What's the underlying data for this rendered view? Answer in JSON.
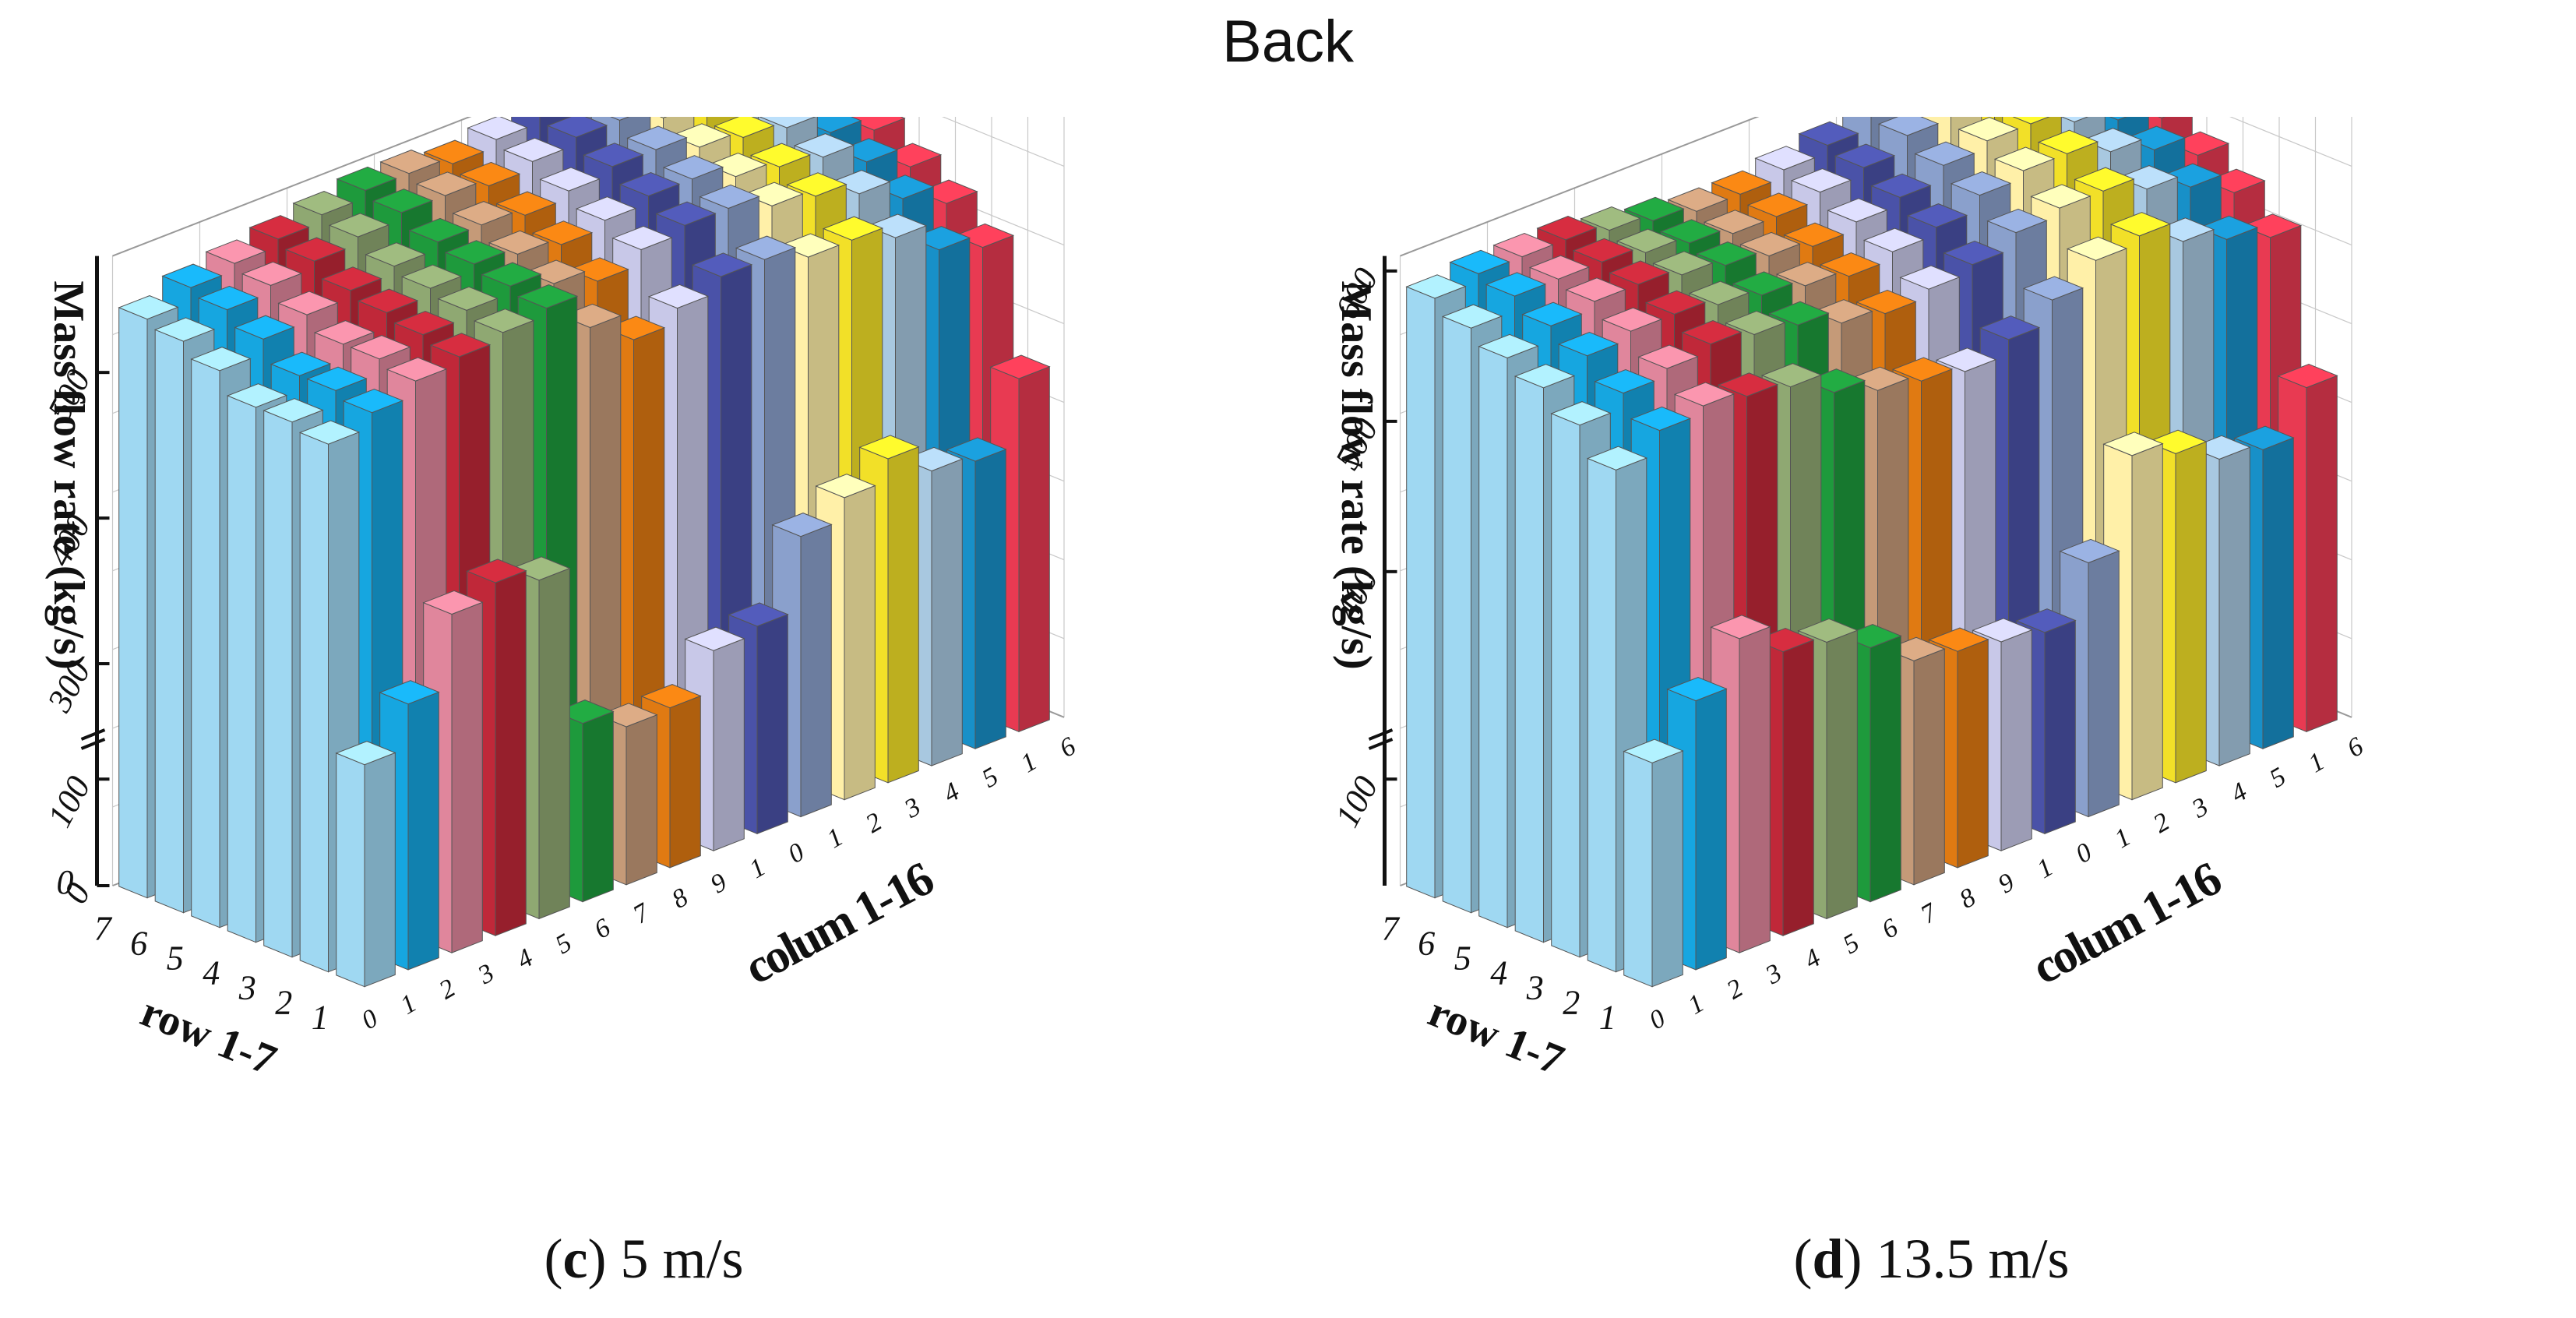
{
  "figure_title": "Back",
  "chart_data": [
    {
      "type": "bar3d",
      "panel_label": "c",
      "caption": "5 m/s",
      "title": "(c) 5 m/s",
      "ylabel": "Mass flow rate (kg/s)",
      "xlabel": "row 1-7",
      "zlabel": "colum 1-16",
      "rows": [
        1,
        2,
        3,
        4,
        5,
        6,
        7
      ],
      "columns": [
        1,
        2,
        3,
        4,
        5,
        6,
        7,
        8,
        9,
        10,
        11,
        12,
        13,
        14,
        15,
        16
      ],
      "column_tick_labels": [
        "0",
        "1",
        "2",
        "3",
        "4",
        "5",
        "6",
        "7",
        "8",
        "9",
        "1",
        "0",
        "1",
        "2",
        "3",
        "4",
        "5",
        "1",
        "6"
      ],
      "row_tick_labels": [
        "1",
        "2",
        "3",
        "4",
        "5",
        "6",
        "7"
      ],
      "yticks_upper": [
        300,
        400,
        500
      ],
      "yticks_lower": [
        0,
        100
      ],
      "axis_break": [
        130,
        260
      ],
      "ylim": [
        0,
        580
      ],
      "series": [
        {
          "name": "row 1",
          "values": [
            300,
            330,
            380,
            390,
            380,
            270,
            230,
            240,
            285,
            290,
            340,
            355,
            370,
            350,
            345,
            390
          ]
        },
        {
          "name": "row 2",
          "values": [
            510,
            520,
            530,
            535,
            540,
            545,
            520,
            500,
            510,
            520,
            520,
            510,
            510,
            500,
            480,
            470
          ]
        },
        {
          "name": "row 3",
          "values": [
            515,
            525,
            535,
            540,
            545,
            550,
            540,
            530,
            540,
            545,
            545,
            535,
            530,
            520,
            505,
            490
          ]
        },
        {
          "name": "row 4",
          "values": [
            515,
            525,
            535,
            545,
            550,
            555,
            550,
            545,
            550,
            555,
            555,
            545,
            540,
            535,
            520,
            505
          ]
        },
        {
          "name": "row 5",
          "values": [
            530,
            540,
            545,
            550,
            555,
            560,
            560,
            555,
            560,
            565,
            565,
            555,
            550,
            545,
            530,
            520
          ]
        },
        {
          "name": "row 6",
          "values": [
            540,
            550,
            555,
            560,
            565,
            570,
            570,
            565,
            570,
            575,
            575,
            565,
            560,
            550,
            540,
            530
          ]
        },
        {
          "name": "row 7",
          "values": [
            545,
            555,
            560,
            565,
            570,
            575,
            575,
            570,
            575,
            580,
            580,
            570,
            565,
            555,
            545,
            535
          ]
        }
      ],
      "colors": [
        "#9fd8f2",
        "#16a6e0",
        "#e0869c",
        "#c02839",
        "#8fa872",
        "#1e9a3c",
        "#c59a78",
        "#e07a12",
        "#c8c8e8",
        "#4a52a8",
        "#8aa0cc",
        "#fff0a8",
        "#f2e028",
        "#a8c8e0",
        "#1890c8",
        "#e83a52"
      ]
    },
    {
      "type": "bar3d",
      "panel_label": "d",
      "caption": "13.5 m/s",
      "title": "(d) 13.5 m/s",
      "ylabel": "Mass flow rate (kg/s)",
      "xlabel": "row 1-7",
      "zlabel": "colum 1-16",
      "rows": [
        1,
        2,
        3,
        4,
        5,
        6,
        7
      ],
      "columns": [
        1,
        2,
        3,
        4,
        5,
        6,
        7,
        8,
        9,
        10,
        11,
        12,
        13,
        14,
        15,
        16
      ],
      "column_tick_labels": [
        "0",
        "1",
        "2",
        "3",
        "4",
        "5",
        "6",
        "7",
        "8",
        "9",
        "1",
        "0",
        "1",
        "2",
        "3",
        "4",
        "5",
        "1",
        "6"
      ],
      "row_tick_labels": [
        "1",
        "2",
        "3",
        "4",
        "5",
        "6",
        "7"
      ],
      "yticks_upper": [
        400,
        500,
        600
      ],
      "yticks_lower": [
        100
      ],
      "axis_break": [
        130,
        300
      ],
      "ylim": [
        0,
        610
      ],
      "series": [
        {
          "name": "row 1",
          "values": [
            340,
            370,
            400,
            380,
            375,
            360,
            340,
            335,
            330,
            325,
            360,
            420,
            410,
            395,
            390,
            420
          ]
        },
        {
          "name": "row 2",
          "values": [
            525,
            540,
            545,
            540,
            535,
            520,
            510,
            505,
            500,
            510,
            525,
            540,
            545,
            530,
            520,
            510
          ]
        },
        {
          "name": "row 3",
          "values": [
            545,
            555,
            560,
            565,
            560,
            555,
            545,
            540,
            545,
            550,
            560,
            565,
            565,
            555,
            545,
            530
          ]
        },
        {
          "name": "row 4",
          "values": [
            560,
            570,
            575,
            575,
            570,
            565,
            560,
            555,
            560,
            565,
            575,
            580,
            580,
            570,
            560,
            545
          ]
        },
        {
          "name": "row 5",
          "values": [
            570,
            580,
            585,
            585,
            580,
            575,
            570,
            565,
            570,
            575,
            585,
            590,
            590,
            580,
            570,
            560
          ]
        },
        {
          "name": "row 6",
          "values": [
            580,
            590,
            590,
            590,
            585,
            580,
            575,
            575,
            580,
            585,
            595,
            600,
            600,
            590,
            580,
            570
          ]
        },
        {
          "name": "row 7",
          "values": [
            590,
            595,
            595,
            595,
            590,
            585,
            580,
            580,
            585,
            590,
            600,
            605,
            605,
            595,
            585,
            575
          ]
        }
      ],
      "colors": [
        "#9fd8f2",
        "#16a6e0",
        "#e0869c",
        "#c02839",
        "#8fa872",
        "#1e9a3c",
        "#c59a78",
        "#e07a12",
        "#c8c8e8",
        "#4a52a8",
        "#8aa0cc",
        "#fff0a8",
        "#f2e028",
        "#a8c8e0",
        "#1890c8",
        "#e83a52"
      ]
    }
  ]
}
